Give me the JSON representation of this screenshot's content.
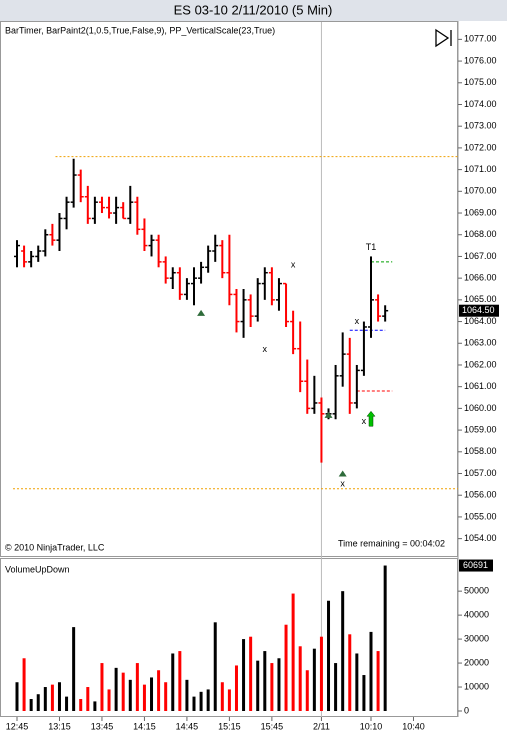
{
  "chart_data": [
    {
      "type": "ohlc",
      "title": "ES 03-10  2/11/2010 (5 Min)",
      "subtitle": "BarTimer, BarPaint2(1,0.5,True,False,9), PP_VerticalScale(23,True)",
      "copyright": "© 2010 NinjaTrader, LLC",
      "time_remaining": "Time remaining = 00:04:02",
      "up_color": "#000000",
      "down_color": "#ff0000",
      "open": [
        1067.0,
        1067.25,
        1066.75,
        1067.0,
        1067.25,
        1068.0,
        1067.75,
        1068.75,
        1069.5,
        1070.75,
        1069.75,
        1068.75,
        1069.5,
        1069.25,
        1069.0,
        1069.25,
        1068.75,
        1069.5,
        1068.25,
        1067.5,
        1067.75,
        1066.75,
        1066.0,
        1066.25,
        1065.25,
        1065.75,
        1066.0,
        1066.5,
        1067.25,
        1067.5,
        1066.25,
        1065.25,
        1064.0,
        1065.0,
        1064.25,
        1065.75,
        1066.25,
        1065.0,
        1065.75,
        1064.0,
        1062.75,
        1061.25,
        1060.0,
        1060.25,
        1059.75,
        1059.75,
        1061.5,
        1062.5,
        1060.25,
        1061.75,
        1063.75,
        1065.0,
        1064.25,
        null,
        null,
        null,
        null
      ],
      "high": [
        1067.75,
        1067.5,
        1067.25,
        1067.5,
        1068.25,
        1068.5,
        1069.0,
        1069.75,
        1071.5,
        1071.0,
        1070.25,
        1069.75,
        1069.75,
        1069.75,
        1069.75,
        1069.5,
        1070.25,
        1069.75,
        1068.75,
        1068.0,
        1068.0,
        1067.0,
        1066.5,
        1066.5,
        1066.0,
        1066.5,
        1066.75,
        1067.5,
        1068.0,
        1067.75,
        1068.0,
        1065.5,
        1065.5,
        1065.25,
        1066.0,
        1066.5,
        1066.5,
        1066.0,
        1065.75,
        1064.5,
        1064.0,
        1062.25,
        1061.5,
        1060.5,
        1060.0,
        1062.0,
        1063.5,
        1063.25,
        1062.0,
        1064.0,
        1067.0,
        1065.25,
        1064.75,
        null,
        null,
        null,
        null
      ],
      "low": [
        1066.5,
        1066.5,
        1066.5,
        1066.75,
        1067.0,
        1067.5,
        1067.25,
        1068.25,
        1069.25,
        1069.5,
        1068.5,
        1068.5,
        1069.0,
        1068.75,
        1068.5,
        1068.75,
        1068.5,
        1068.0,
        1067.25,
        1067.0,
        1066.5,
        1065.75,
        1065.5,
        1065.0,
        1065.0,
        1064.75,
        1065.75,
        1066.25,
        1066.75,
        1066.0,
        1064.75,
        1063.5,
        1063.25,
        1063.75,
        1064.0,
        1065.0,
        1064.75,
        1064.5,
        1063.75,
        1062.5,
        1060.75,
        1059.75,
        1059.75,
        1057.5,
        1059.5,
        1059.5,
        1061.0,
        1059.75,
        1060.0,
        1061.5,
        1063.25,
        1064.0,
        1064.0,
        null,
        null,
        null,
        null
      ],
      "close": [
        1067.5,
        1066.75,
        1067.0,
        1067.25,
        1068.0,
        1067.75,
        1068.75,
        1069.5,
        1070.75,
        1069.75,
        1068.75,
        1069.5,
        1069.25,
        1069.0,
        1069.25,
        1068.75,
        1069.5,
        1068.25,
        1067.5,
        1067.75,
        1066.75,
        1066.0,
        1066.25,
        1065.25,
        1065.75,
        1066.0,
        1066.5,
        1067.25,
        1067.5,
        1066.25,
        1065.25,
        1064.0,
        1065.0,
        1064.25,
        1065.75,
        1066.25,
        1065.0,
        1065.75,
        1064.0,
        1062.75,
        1061.25,
        1060.0,
        1060.25,
        1059.75,
        1059.75,
        1061.5,
        1062.5,
        1060.25,
        1061.75,
        1063.75,
        1065.0,
        1064.25,
        1064.5,
        null,
        null,
        null,
        null
      ],
      "last_price": {
        "value": 1064.5,
        "label": "1064.50"
      },
      "ylim": [
        1053.2,
        1077.8
      ],
      "yticks": [
        {
          "value": 1054,
          "label": "1054.00"
        },
        {
          "value": 1055,
          "label": "1055.00"
        },
        {
          "value": 1056,
          "label": "1056.00"
        },
        {
          "value": 1057,
          "label": "1057.00"
        },
        {
          "value": 1058,
          "label": "1058.00"
        },
        {
          "value": 1059,
          "label": "1059.00"
        },
        {
          "value": 1060,
          "label": "1060.00"
        },
        {
          "value": 1061,
          "label": "1061.00"
        },
        {
          "value": 1062,
          "label": "1062.00"
        },
        {
          "value": 1063,
          "label": "1063.00"
        },
        {
          "value": 1064,
          "label": "1064.00"
        },
        {
          "value": 1065,
          "label": "1065.00"
        },
        {
          "value": 1066,
          "label": "1066.00"
        },
        {
          "value": 1067,
          "label": "1067.00"
        },
        {
          "value": 1068,
          "label": "1068.00"
        },
        {
          "value": 1069,
          "label": "1069.00"
        },
        {
          "value": 1070,
          "label": "1070.00"
        },
        {
          "value": 1071,
          "label": "1071.00"
        },
        {
          "value": 1072,
          "label": "1072.00"
        },
        {
          "value": 1073,
          "label": "1073.00"
        },
        {
          "value": 1074,
          "label": "1074.00"
        },
        {
          "value": 1075,
          "label": "1075.00"
        },
        {
          "value": 1076,
          "label": "1076.00"
        },
        {
          "value": 1077,
          "label": "1077.00"
        }
      ],
      "hlines": [
        {
          "value": 1071.6,
          "start": 6,
          "color": "#f0a000"
        },
        {
          "value": 1056.3,
          "start": 0,
          "color": "#f0a000"
        }
      ],
      "levels": [
        {
          "value": 1066.75,
          "from": 50,
          "to": 53,
          "color": "#00a000"
        },
        {
          "value": 1063.6,
          "from": 47,
          "to": 52,
          "color": "#0000ff"
        },
        {
          "value": 1060.8,
          "from": 48,
          "to": 53,
          "color": "#ff0000"
        }
      ],
      "markers": [
        {
          "label": "x",
          "index": 39,
          "value": 1066.6
        },
        {
          "label": "x",
          "index": 35,
          "value": 1062.7
        },
        {
          "label": "x",
          "index": 48,
          "value": 1064.0
        },
        {
          "label": "x",
          "index": 49,
          "value": 1059.4
        },
        {
          "label": "x",
          "index": 46,
          "value": 1056.5
        },
        {
          "label": "T1",
          "index": 50,
          "value": 1067.4
        }
      ],
      "triangles": [
        {
          "index": 26,
          "value": 1064.4
        },
        {
          "index": 44,
          "value": 1059.7
        },
        {
          "index": 46,
          "value": 1057.0
        }
      ],
      "triangle_color": "#2e6b3a",
      "arrows": [
        {
          "index": 50,
          "value": 1059.5,
          "color": "#00c000"
        }
      ],
      "session_break": 43
    },
    {
      "type": "bar",
      "title": "VolumeUpDown",
      "categories": [
        "12:45",
        null,
        null,
        null,
        null,
        null,
        "13:15",
        null,
        null,
        null,
        null,
        null,
        "13:45",
        null,
        null,
        null,
        null,
        null,
        "14:15",
        null,
        null,
        null,
        null,
        null,
        "14:45",
        null,
        null,
        null,
        null,
        null,
        "15:15",
        null,
        null,
        null,
        null,
        null,
        "15:45",
        null,
        null,
        null,
        null,
        null,
        null,
        "2/11",
        null,
        null,
        null,
        null,
        null,
        null,
        "10:10",
        null,
        null,
        null,
        null,
        null,
        "10:40"
      ],
      "values": [
        12000,
        22000,
        5000,
        7000,
        10000,
        11000,
        12000,
        6000,
        35000,
        5000,
        10000,
        4000,
        20000,
        9000,
        18000,
        16000,
        13000,
        20000,
        11000,
        14000,
        17000,
        12000,
        24000,
        25000,
        13000,
        6000,
        8000,
        9000,
        37000,
        12000,
        9000,
        19000,
        30000,
        31000,
        21000,
        25000,
        20000,
        22000,
        36000,
        49000,
        27000,
        17000,
        26000,
        31000,
        46000,
        20000,
        50000,
        32000,
        24000,
        15000,
        33000,
        25000,
        60691,
        null,
        null,
        null,
        null
      ],
      "ylim": [
        0,
        63000
      ],
      "yticks": [
        0,
        10000,
        20000,
        30000,
        40000,
        50000
      ]
    }
  ]
}
